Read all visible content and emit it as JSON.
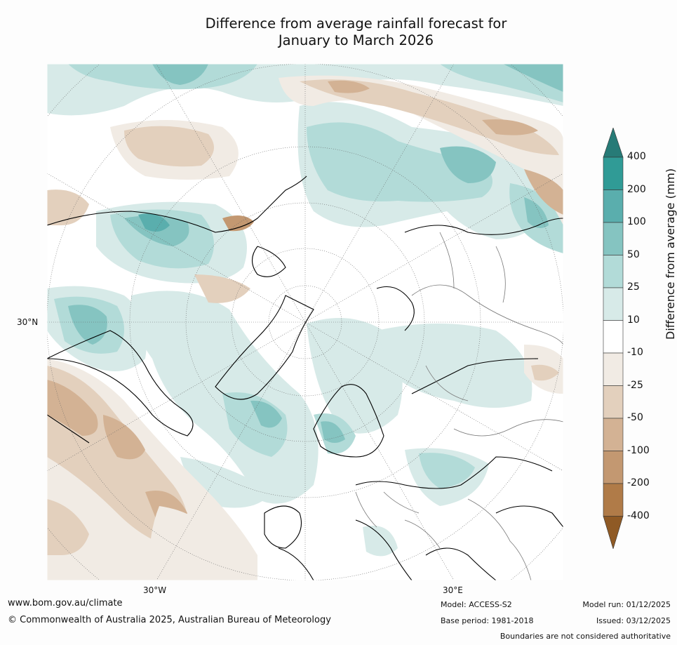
{
  "title_line1": "Difference from average rainfall forecast for",
  "title_line2": "January to March 2026",
  "lat_labels": [
    "30°N"
  ],
  "lon_labels": [
    "30°W",
    "30°E"
  ],
  "colorbar": {
    "title": "Difference from average (mm)",
    "ticks": [
      "400",
      "200",
      "100",
      "50",
      "25",
      "10",
      "-10",
      "-25",
      "-50",
      "-100",
      "-200",
      "-400"
    ],
    "colors": [
      "#277b77",
      "#309b96",
      "#5aaead",
      "#85c4c1",
      "#b2dbd8",
      "#d7eae8",
      "#ffffff",
      "#f1ebe4",
      "#e3d0bd",
      "#d3b294",
      "#c39871",
      "#b07b48",
      "#8f5a25"
    ]
  },
  "footer": {
    "url": "www.bom.gov.au/climate",
    "copyright": "© Commonwealth of Australia 2025, Australian Bureau of Meteorology",
    "model": "Model: ACCESS-S2",
    "base_period": "Base period: 1981-2018",
    "model_run": "Model run: 01/12/2025",
    "issued": "Issued: 03/12/2025",
    "disclaimer": "Boundaries are not considered authoritative"
  }
}
